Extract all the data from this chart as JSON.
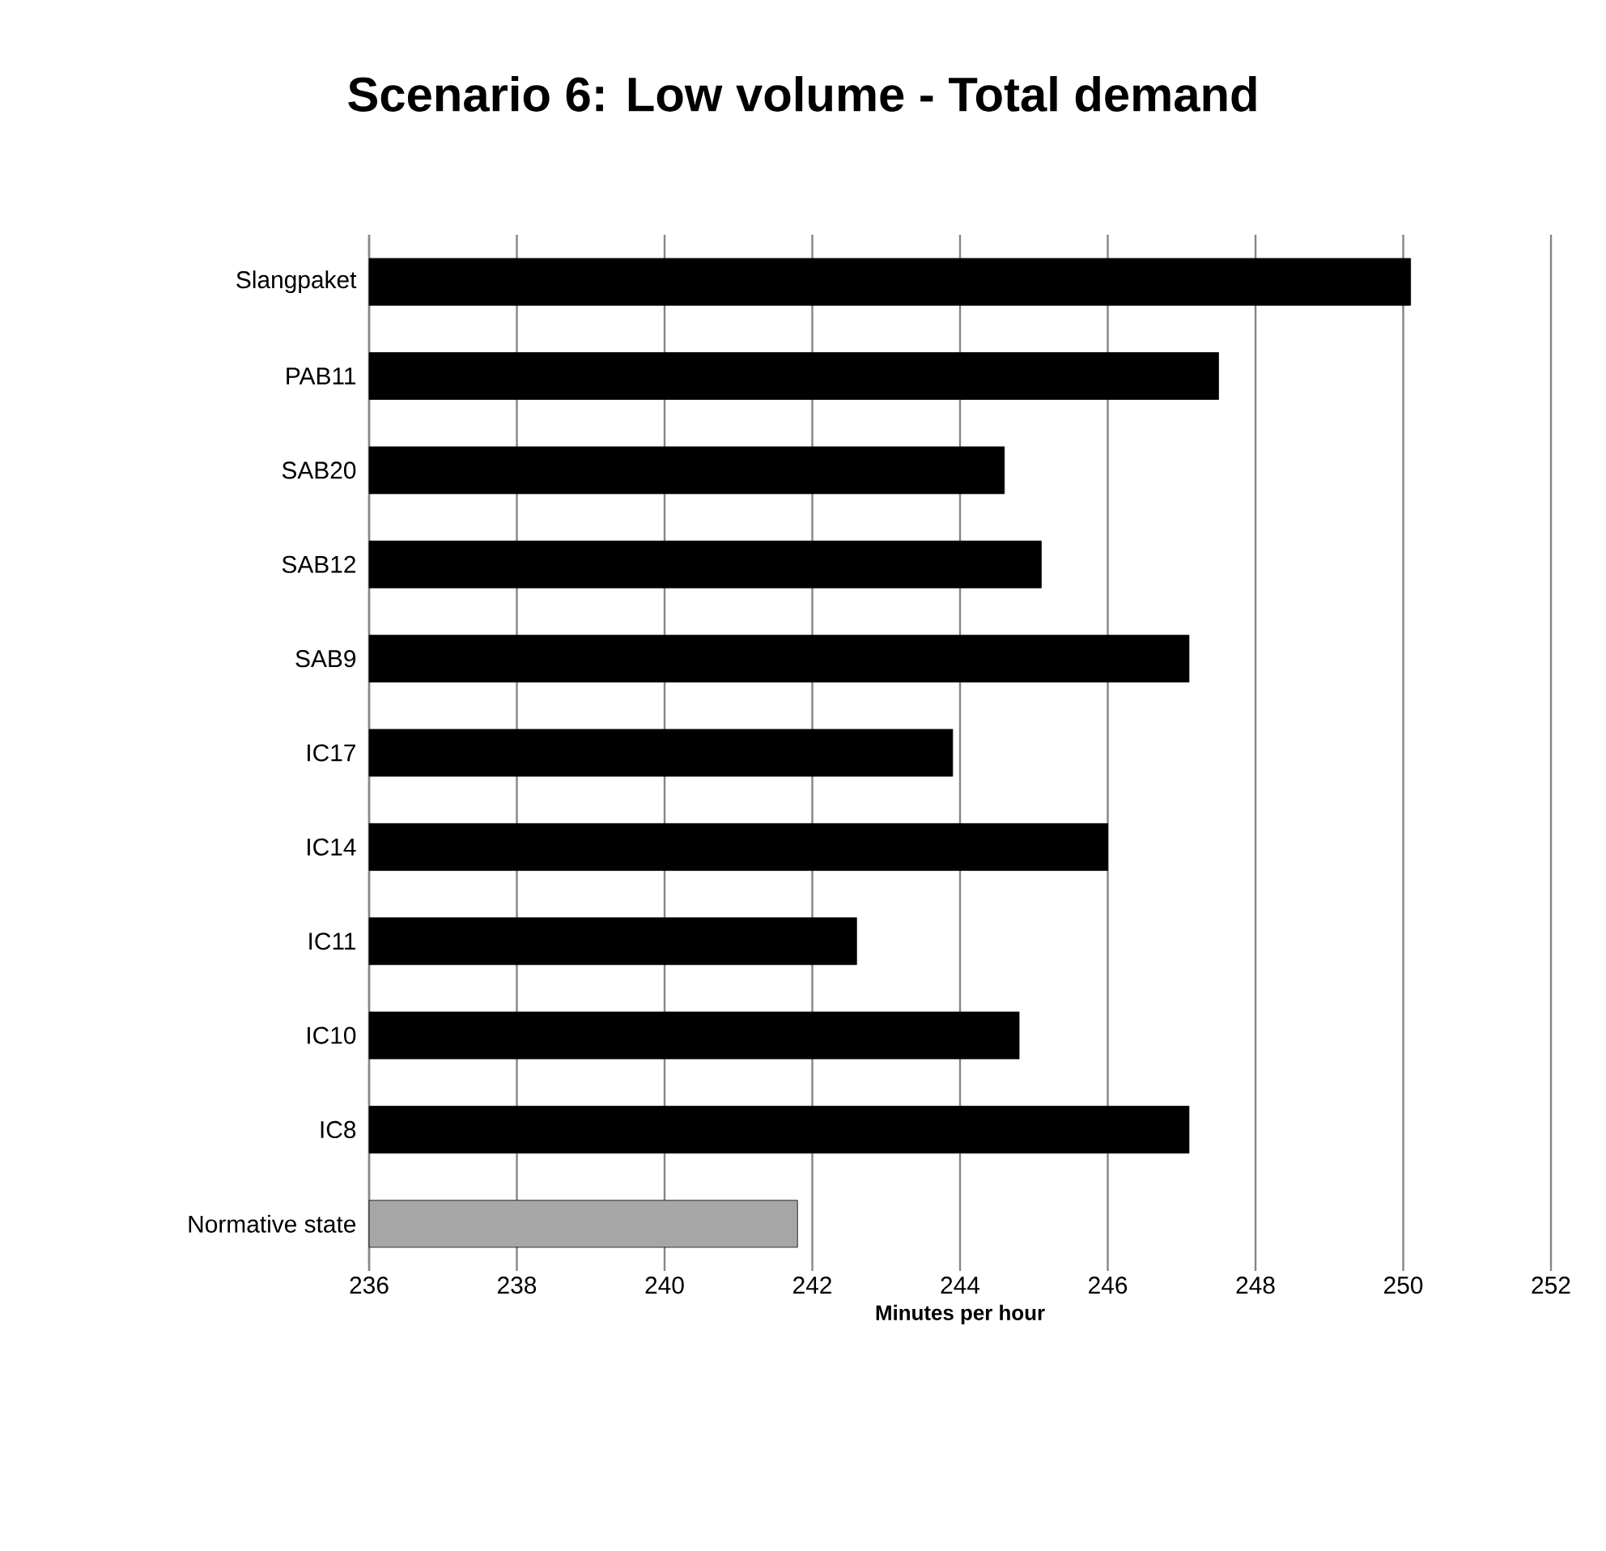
{
  "chart_data": {
    "type": "bar",
    "orientation": "horizontal",
    "title": "Scenario 6: Low volume - Total demand",
    "xlabel": "Minutes per hour",
    "categories": [
      "Slangpaket",
      "PAB11",
      "SAB20",
      "SAB12",
      "SAB9",
      "IC17",
      "IC14",
      "IC11",
      "IC10",
      "IC8",
      "Normative state"
    ],
    "values": [
      250.1,
      247.5,
      244.6,
      245.1,
      247.1,
      243.9,
      246.0,
      242.6,
      244.8,
      247.1,
      241.8
    ],
    "colors": [
      "#000000",
      "#000000",
      "#000000",
      "#000000",
      "#000000",
      "#000000",
      "#000000",
      "#000000",
      "#000000",
      "#000000",
      "#a6a6a6"
    ],
    "xlim": [
      236,
      252
    ],
    "xticks": [
      236,
      238,
      240,
      242,
      244,
      246,
      248,
      250,
      252
    ],
    "grid": "x"
  }
}
